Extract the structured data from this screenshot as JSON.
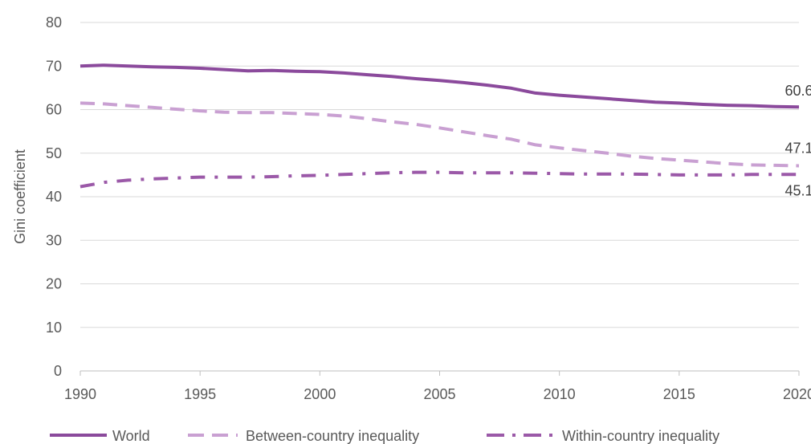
{
  "chart_data": {
    "type": "line",
    "title": "",
    "xlabel": "",
    "ylabel": "Gini coefficient",
    "xlim": [
      1990,
      2020
    ],
    "ylim": [
      0,
      80
    ],
    "xticks": [
      "1990",
      "1995",
      "2000",
      "2005",
      "2010",
      "2015",
      "2020"
    ],
    "yticks": [
      "0",
      "10",
      "20",
      "30",
      "40",
      "50",
      "60",
      "70",
      "80"
    ],
    "grid": "horizontal",
    "legend_position": "bottom",
    "x": [
      1990,
      1991,
      1992,
      1993,
      1994,
      1995,
      1996,
      1997,
      1998,
      1999,
      2000,
      2001,
      2002,
      2003,
      2004,
      2005,
      2006,
      2007,
      2008,
      2009,
      2010,
      2011,
      2012,
      2013,
      2014,
      2015,
      2016,
      2017,
      2018,
      2019,
      2020
    ],
    "series": [
      {
        "name": "World",
        "color": "#8b4a9c",
        "dash": "solid",
        "values": [
          70.0,
          70.2,
          70.0,
          69.8,
          69.7,
          69.5,
          69.2,
          68.9,
          69.0,
          68.8,
          68.7,
          68.4,
          68.0,
          67.6,
          67.1,
          66.7,
          66.2,
          65.6,
          64.9,
          63.8,
          63.3,
          62.9,
          62.5,
          62.1,
          61.7,
          61.5,
          61.2,
          61.0,
          60.9,
          60.7,
          60.6
        ],
        "end_label": "60.6"
      },
      {
        "name": "Between-country inequality",
        "color": "#c9a0d2",
        "dash": "dash",
        "values": [
          61.5,
          61.3,
          60.9,
          60.5,
          60.1,
          59.7,
          59.4,
          59.3,
          59.3,
          59.1,
          58.9,
          58.5,
          57.9,
          57.2,
          56.6,
          55.8,
          54.9,
          54.0,
          53.2,
          51.9,
          51.2,
          50.6,
          50.0,
          49.3,
          48.8,
          48.4,
          48.0,
          47.6,
          47.3,
          47.2,
          47.1
        ],
        "end_label": "47.1"
      },
      {
        "name": "Within-country inequality",
        "color": "#9b59a8",
        "dash": "dashdot",
        "values": [
          42.3,
          43.3,
          43.8,
          44.1,
          44.3,
          44.5,
          44.5,
          44.5,
          44.6,
          44.8,
          44.9,
          45.1,
          45.3,
          45.5,
          45.6,
          45.6,
          45.5,
          45.5,
          45.5,
          45.4,
          45.3,
          45.2,
          45.2,
          45.2,
          45.1,
          45.0,
          45.0,
          45.0,
          45.1,
          45.1,
          45.1
        ],
        "end_label": "45.1"
      }
    ]
  }
}
